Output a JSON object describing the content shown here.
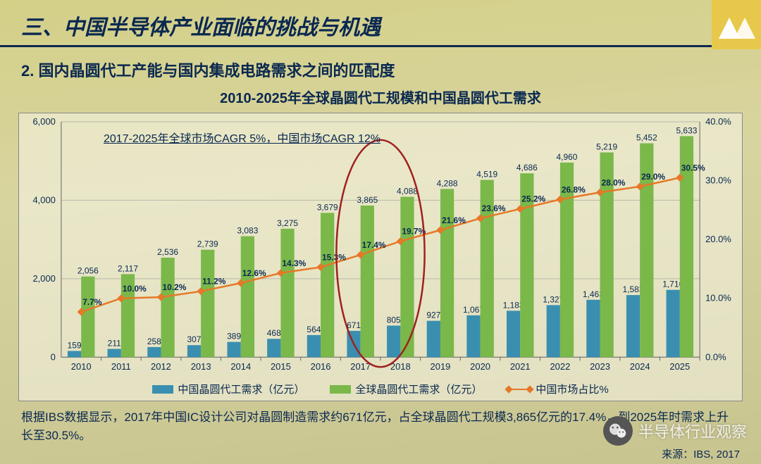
{
  "main_title": "三、中国半导体产业面临的挑战与机遇",
  "subtitle": "2. 国内晶圆代工产能与国内集成电路需求之间的匹配度",
  "chart_title": "2010-2025年全球晶圆代工规模和中国晶圆代工需求",
  "cagr_note": "2017-2025年全球市场CAGR 5%，中国市场CAGR 12%",
  "footnote": "根据IBS数据显示，2017年中国IC设计公司对晶圆制造需求约671亿元，占全球晶圆代工规模3,865亿元的17.4%，到2025年时需求上升长至30.5%。",
  "source_label": "来源：IBS, 2017",
  "watermark_text": "半导体行业观察",
  "legend": {
    "china_demand": "中国晶圆代工需求（亿元）",
    "global_demand": "全球晶圆代工需求（亿元）",
    "china_share": "中国市场占比%"
  },
  "colors": {
    "title": "#0a2850",
    "china_bar": "#3a8fb0",
    "global_bar": "#7ab84a",
    "line": "#e67828",
    "grid": "#b8b8a8",
    "axis": "#666",
    "highlight_ellipse": "#a02020"
  },
  "chart": {
    "type": "bar+line",
    "years": [
      "2010",
      "2011",
      "2012",
      "2013",
      "2014",
      "2015",
      "2016",
      "2017",
      "2018",
      "2019",
      "2020",
      "2021",
      "2022",
      "2023",
      "2024",
      "2025"
    ],
    "china_demand": [
      159,
      211,
      258,
      307,
      389,
      468,
      564,
      671,
      805,
      927,
      1067,
      1183,
      1327,
      1463,
      1583,
      1716
    ],
    "global_demand": [
      2056,
      2117,
      2536,
      2739,
      3083,
      3275,
      3679,
      3865,
      4088,
      4288,
      4519,
      4686,
      4960,
      5219,
      5452,
      5633
    ],
    "china_share_pct": [
      7.7,
      10.0,
      10.2,
      11.2,
      12.6,
      14.3,
      15.3,
      17.4,
      19.7,
      21.6,
      23.6,
      25.2,
      26.8,
      28.0,
      29.0,
      30.5
    ],
    "y1_max": 6000,
    "y1_step": 2000,
    "y2_max": 40.0,
    "y2_step": 10.0,
    "highlight_years": [
      "2017",
      "2018"
    ],
    "label_fontsize": 12,
    "axis_fontsize": 13,
    "bar_group_width": 0.68
  }
}
